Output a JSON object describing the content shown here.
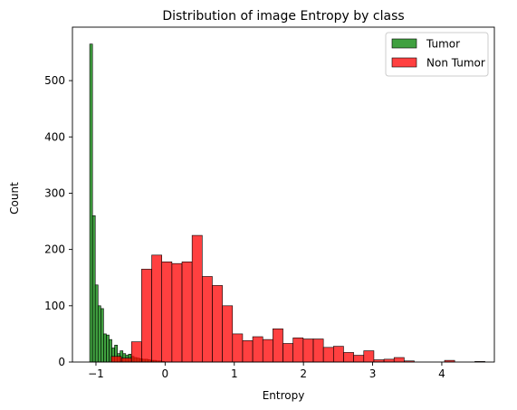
{
  "chart_data": {
    "type": "bar",
    "title": "Distribution of image Entropy by class",
    "xlabel": "Entropy",
    "ylabel": "Count",
    "xlim": [
      -1.34,
      4.76
    ],
    "ylim": [
      0,
      595
    ],
    "xticks": [
      -1,
      0,
      1,
      2,
      3,
      4
    ],
    "yticks": [
      0,
      100,
      200,
      300,
      400,
      500
    ],
    "grid": false,
    "legend_position": "top-right",
    "series": [
      {
        "name": "Tumor",
        "color": "#008000",
        "alpha": 0.75,
        "bin_width": 0.0405,
        "x": [
          -1.07,
          -1.03,
          -0.99,
          -0.95,
          -0.91,
          -0.87,
          -0.83,
          -0.79,
          -0.75,
          -0.71,
          -0.67,
          -0.63,
          -0.59,
          -0.55,
          -0.51,
          -0.47,
          -0.43,
          -0.39,
          -0.35,
          -0.31,
          -0.27,
          -0.23,
          -0.19,
          -0.15,
          -0.11,
          -0.07,
          -0.03
        ],
        "values": [
          565,
          260,
          137,
          100,
          95,
          50,
          48,
          40,
          25,
          30,
          15,
          20,
          15,
          12,
          14,
          10,
          8,
          7,
          6,
          5,
          5,
          4,
          3,
          3,
          2,
          2,
          1
        ]
      },
      {
        "name": "Non Tumor",
        "color": "#ff0000",
        "alpha": 0.75,
        "bin_width": 0.146,
        "x": [
          -0.705,
          -0.559,
          -0.413,
          -0.267,
          -0.121,
          0.025,
          0.171,
          0.317,
          0.463,
          0.609,
          0.755,
          0.901,
          1.047,
          1.193,
          1.339,
          1.485,
          1.631,
          1.777,
          1.923,
          2.069,
          2.215,
          2.361,
          2.507,
          2.653,
          2.799,
          2.945,
          3.091,
          3.237,
          3.383,
          3.529,
          3.675,
          3.821,
          3.967,
          4.113,
          4.259,
          4.405,
          4.551
        ],
        "values": [
          10,
          7,
          36,
          165,
          190,
          178,
          175,
          178,
          225,
          152,
          136,
          100,
          50,
          38,
          45,
          40,
          59,
          33,
          43,
          41,
          41,
          26,
          28,
          17,
          12,
          20,
          4,
          5,
          8,
          2,
          0,
          0,
          0,
          3,
          0,
          0,
          1
        ]
      }
    ]
  }
}
